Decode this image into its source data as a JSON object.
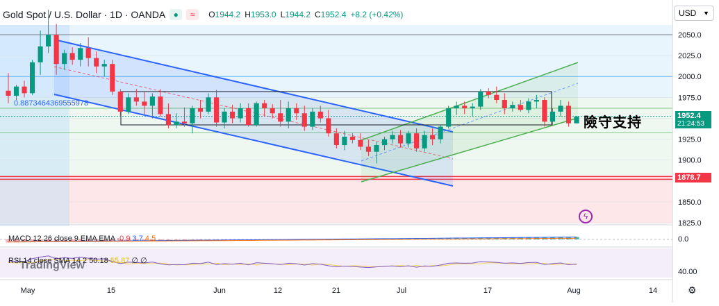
{
  "header": {
    "title": "Gold Spot / U.S. Dollar · 1D · OANDA",
    "ohlc": [
      {
        "label": "O",
        "value": "1944.2"
      },
      {
        "label": "H",
        "value": "1953.0"
      },
      {
        "label": "L",
        "value": "1944.2"
      },
      {
        "label": "C",
        "value": "1952.4"
      },
      {
        "label": "",
        "value": "+8.2 (+0.42%)"
      }
    ]
  },
  "currency_select": {
    "value": "USD"
  },
  "annotation_text": "險守支持",
  "fib_label": "0.8873464369555978",
  "current_price": {
    "price": "1952.4",
    "countdown": "21:24:53",
    "color": "#089981"
  },
  "support_price": {
    "price": "1878.7",
    "color": "#f23645"
  },
  "macd": {
    "label": "MACD 12 26 close 9 EMA EMA",
    "values": [
      "-0.9",
      "3.7",
      "4.5"
    ],
    "axis_label": "0.0"
  },
  "rsi": {
    "label": "RSI 14 close SMA 14 2",
    "values": [
      "50.18",
      "55.87",
      "∅",
      "∅"
    ],
    "axis_label": "40.00"
  },
  "logo_text": "TradingView",
  "colors": {
    "up": "#089981",
    "down": "#f23645",
    "channel_line": "#2962ff",
    "up_channel": "#4caf50"
  },
  "chart_data": {
    "type": "candlestick",
    "title": "Gold Spot / U.S. Dollar · 1D · OANDA",
    "y_ticks": [
      2050,
      2025,
      2000,
      1975,
      1950,
      1925,
      1900,
      1875,
      1850,
      1825
    ],
    "y_tick_labels": [
      "2050.0",
      "2025.0",
      "2000.0",
      "1975.0",
      "",
      "1925.0",
      "1900.0",
      "",
      "1850.0",
      "1825.0"
    ],
    "ylim": [
      1816,
      2070
    ],
    "x_ticks": [
      "May",
      "15",
      "Jun",
      "12",
      "21",
      "Jul",
      "17",
      "Aug",
      "14"
    ],
    "candles": [
      {
        "o": 1983,
        "h": 2004,
        "l": 1968,
        "c": 1977
      },
      {
        "o": 1977,
        "h": 1990,
        "l": 1972,
        "c": 1988
      },
      {
        "o": 1988,
        "h": 1995,
        "l": 1975,
        "c": 1980
      },
      {
        "o": 1980,
        "h": 2020,
        "l": 1978,
        "c": 2017
      },
      {
        "o": 2017,
        "h": 2055,
        "l": 2002,
        "c": 2036
      },
      {
        "o": 2036,
        "h": 2080,
        "l": 2028,
        "c": 2050
      },
      {
        "o": 2050,
        "h": 2063,
        "l": 2002,
        "c": 2015
      },
      {
        "o": 2015,
        "h": 2032,
        "l": 2008,
        "c": 2028
      },
      {
        "o": 2028,
        "h": 2035,
        "l": 2014,
        "c": 2020
      },
      {
        "o": 2020,
        "h": 2040,
        "l": 2012,
        "c": 2034
      },
      {
        "o": 2034,
        "h": 2047,
        "l": 2012,
        "c": 2022
      },
      {
        "o": 2022,
        "h": 2030,
        "l": 2004,
        "c": 2012
      },
      {
        "o": 2012,
        "h": 2020,
        "l": 2000,
        "c": 2015
      },
      {
        "o": 2015,
        "h": 2020,
        "l": 1978,
        "c": 1982
      },
      {
        "o": 1982,
        "h": 1985,
        "l": 1952,
        "c": 1958
      },
      {
        "o": 1958,
        "h": 1980,
        "l": 1955,
        "c": 1975
      },
      {
        "o": 1975,
        "h": 1985,
        "l": 1965,
        "c": 1970
      },
      {
        "o": 1970,
        "h": 1982,
        "l": 1955,
        "c": 1965
      },
      {
        "o": 1965,
        "h": 1980,
        "l": 1950,
        "c": 1976
      },
      {
        "o": 1976,
        "h": 1985,
        "l": 1952,
        "c": 1955
      },
      {
        "o": 1955,
        "h": 1968,
        "l": 1938,
        "c": 1942
      },
      {
        "o": 1942,
        "h": 1956,
        "l": 1938,
        "c": 1946
      },
      {
        "o": 1946,
        "h": 1963,
        "l": 1940,
        "c": 1944
      },
      {
        "o": 1944,
        "h": 1965,
        "l": 1932,
        "c": 1962
      },
      {
        "o": 1962,
        "h": 1972,
        "l": 1950,
        "c": 1958
      },
      {
        "o": 1958,
        "h": 1980,
        "l": 1955,
        "c": 1975
      },
      {
        "o": 1975,
        "h": 1984,
        "l": 1940,
        "c": 1945
      },
      {
        "o": 1945,
        "h": 1962,
        "l": 1938,
        "c": 1958
      },
      {
        "o": 1958,
        "h": 1966,
        "l": 1944,
        "c": 1950
      },
      {
        "o": 1950,
        "h": 1968,
        "l": 1945,
        "c": 1962
      },
      {
        "o": 1962,
        "h": 1968,
        "l": 1940,
        "c": 1942
      },
      {
        "o": 1942,
        "h": 1970,
        "l": 1940,
        "c": 1968
      },
      {
        "o": 1968,
        "h": 1972,
        "l": 1952,
        "c": 1962
      },
      {
        "o": 1962,
        "h": 1967,
        "l": 1950,
        "c": 1956
      },
      {
        "o": 1956,
        "h": 1972,
        "l": 1940,
        "c": 1946
      },
      {
        "o": 1946,
        "h": 1970,
        "l": 1938,
        "c": 1962
      },
      {
        "o": 1962,
        "h": 1968,
        "l": 1948,
        "c": 1956
      },
      {
        "o": 1956,
        "h": 1965,
        "l": 1935,
        "c": 1940
      },
      {
        "o": 1940,
        "h": 1962,
        "l": 1936,
        "c": 1958
      },
      {
        "o": 1958,
        "h": 1965,
        "l": 1945,
        "c": 1950
      },
      {
        "o": 1950,
        "h": 1960,
        "l": 1928,
        "c": 1932
      },
      {
        "o": 1932,
        "h": 1938,
        "l": 1914,
        "c": 1918
      },
      {
        "o": 1918,
        "h": 1935,
        "l": 1912,
        "c": 1928
      },
      {
        "o": 1928,
        "h": 1932,
        "l": 1920,
        "c": 1924
      },
      {
        "o": 1924,
        "h": 1932,
        "l": 1912,
        "c": 1916
      },
      {
        "o": 1916,
        "h": 1924,
        "l": 1905,
        "c": 1910
      },
      {
        "o": 1910,
        "h": 1922,
        "l": 1896,
        "c": 1918
      },
      {
        "o": 1918,
        "h": 1928,
        "l": 1912,
        "c": 1925
      },
      {
        "o": 1925,
        "h": 1935,
        "l": 1920,
        "c": 1930
      },
      {
        "o": 1930,
        "h": 1936,
        "l": 1915,
        "c": 1920
      },
      {
        "o": 1920,
        "h": 1935,
        "l": 1915,
        "c": 1932
      },
      {
        "o": 1932,
        "h": 1938,
        "l": 1910,
        "c": 1914
      },
      {
        "o": 1914,
        "h": 1935,
        "l": 1910,
        "c": 1930
      },
      {
        "o": 1930,
        "h": 1938,
        "l": 1918,
        "c": 1925
      },
      {
        "o": 1925,
        "h": 1942,
        "l": 1920,
        "c": 1940
      },
      {
        "o": 1940,
        "h": 1965,
        "l": 1938,
        "c": 1962
      },
      {
        "o": 1962,
        "h": 1970,
        "l": 1954,
        "c": 1965
      },
      {
        "o": 1965,
        "h": 1970,
        "l": 1955,
        "c": 1962
      },
      {
        "o": 1962,
        "h": 1968,
        "l": 1952,
        "c": 1964
      },
      {
        "o": 1964,
        "h": 1985,
        "l": 1960,
        "c": 1982
      },
      {
        "o": 1982,
        "h": 1986,
        "l": 1974,
        "c": 1978
      },
      {
        "o": 1978,
        "h": 1988,
        "l": 1968,
        "c": 1972
      },
      {
        "o": 1972,
        "h": 1980,
        "l": 1955,
        "c": 1962
      },
      {
        "o": 1962,
        "h": 1970,
        "l": 1958,
        "c": 1966
      },
      {
        "o": 1966,
        "h": 1972,
        "l": 1958,
        "c": 1960
      },
      {
        "o": 1960,
        "h": 1974,
        "l": 1956,
        "c": 1970
      },
      {
        "o": 1970,
        "h": 1978,
        "l": 1962,
        "c": 1972
      },
      {
        "o": 1972,
        "h": 1975,
        "l": 1940,
        "c": 1946
      },
      {
        "o": 1946,
        "h": 1962,
        "l": 1942,
        "c": 1958
      },
      {
        "o": 1958,
        "h": 1972,
        "l": 1952,
        "c": 1965
      },
      {
        "o": 1965,
        "h": 1970,
        "l": 1940,
        "c": 1944
      },
      {
        "o": 1944,
        "h": 1953,
        "l": 1944,
        "c": 1952
      }
    ]
  }
}
